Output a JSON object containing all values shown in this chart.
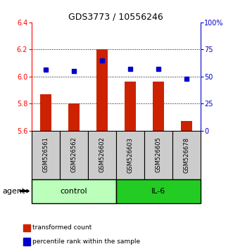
{
  "title": "GDS3773 / 10556246",
  "samples": [
    "GSM526561",
    "GSM526562",
    "GSM526602",
    "GSM526603",
    "GSM526605",
    "GSM526678"
  ],
  "bar_values": [
    5.87,
    5.8,
    6.2,
    5.96,
    5.96,
    5.67
  ],
  "percentile_values": [
    56,
    55,
    65,
    57,
    57,
    48
  ],
  "ylim_left": [
    5.6,
    6.4
  ],
  "ylim_right": [
    0,
    100
  ],
  "yticks_left": [
    5.6,
    5.8,
    6.0,
    6.2,
    6.4
  ],
  "yticks_right": [
    0,
    25,
    50,
    75,
    100
  ],
  "ytick_labels_right": [
    "0",
    "25",
    "50",
    "75",
    "100%"
  ],
  "bar_color": "#cc2200",
  "dot_color": "#0000cc",
  "bar_bottom": 5.6,
  "bar_width": 0.4,
  "groups": [
    {
      "label": "control",
      "indices": [
        0,
        1,
        2
      ],
      "color": "#bbffbb"
    },
    {
      "label": "IL-6",
      "indices": [
        3,
        4,
        5
      ],
      "color": "#22cc22"
    }
  ],
  "agent_label": "agent",
  "legend_items": [
    {
      "label": "transformed count",
      "color": "#cc2200"
    },
    {
      "label": "percentile rank within the sample",
      "color": "#0000cc"
    }
  ],
  "sample_box_color": "#cccccc",
  "grid_yticks": [
    5.8,
    6.0,
    6.2
  ]
}
